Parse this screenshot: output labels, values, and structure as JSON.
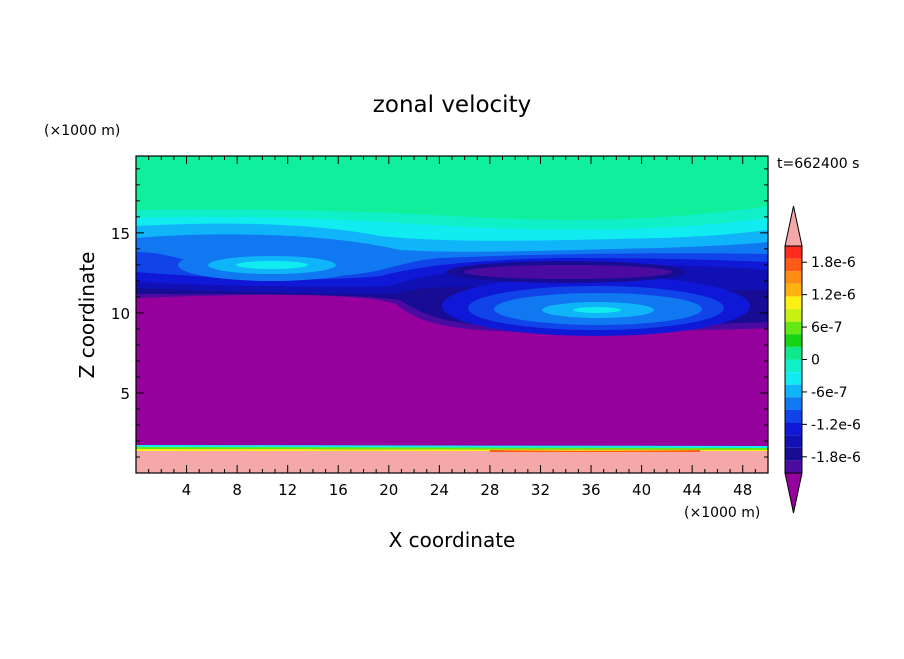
{
  "chart_data": {
    "type": "heatmap",
    "title": "zonal velocity",
    "time_label": "t=662400 s",
    "xlabel": "X coordinate",
    "ylabel": "Z coordinate",
    "x_unit": "(×1000 m)",
    "z_unit": "(×1000 m)",
    "xlim": [
      0,
      50
    ],
    "zlim": [
      0,
      19.8
    ],
    "x_ticks": [
      4,
      8,
      12,
      16,
      20,
      24,
      28,
      32,
      36,
      40,
      44,
      48
    ],
    "x_tick_labels": [
      "4",
      "8",
      "12",
      "16",
      "20",
      "24",
      "28",
      "32",
      "36",
      "40",
      "44",
      "48"
    ],
    "z_ticks": [
      5,
      10,
      15
    ],
    "z_tick_labels": [
      "5",
      "10",
      "15"
    ],
    "colorbar": {
      "range": [
        -2.1e-06,
        2.1e-06
      ],
      "levels": [
        "1.8e-6",
        "1.2e-6",
        "6e-7",
        "0",
        "-6e-7",
        "-1.2e-6",
        "-1.8e-6"
      ],
      "level_values": [
        1.8e-06,
        1.2e-06,
        6e-07,
        0,
        -6e-07,
        -1.2e-06,
        -1.8e-06
      ],
      "colors": [
        "#ff2a20",
        "#ff5b18",
        "#ff8c14",
        "#ffb414",
        "#fff014",
        "#c8f014",
        "#66e814",
        "#14d414",
        "#10e88c",
        "#10f0c8",
        "#10ecf0",
        "#10b4f8",
        "#1078f0",
        "#1044e8",
        "#1018d8",
        "#1010b4",
        "#180c94",
        "#4a0ca0"
      ],
      "over_color": "#f4a8a8",
      "under_color": "#96009c"
    },
    "regions": [
      {
        "value": "> 2.1e-6",
        "color": "#f4a8a8",
        "z_range": [
          0,
          1.6
        ]
      },
      {
        "value": "< -2.1e-6",
        "color": "#96009c",
        "z_range": [
          1.7,
          11.2
        ]
      },
      {
        "value": "-3e-7",
        "color": "#10f09c",
        "z_range": [
          16.5,
          19.8
        ]
      }
    ]
  }
}
